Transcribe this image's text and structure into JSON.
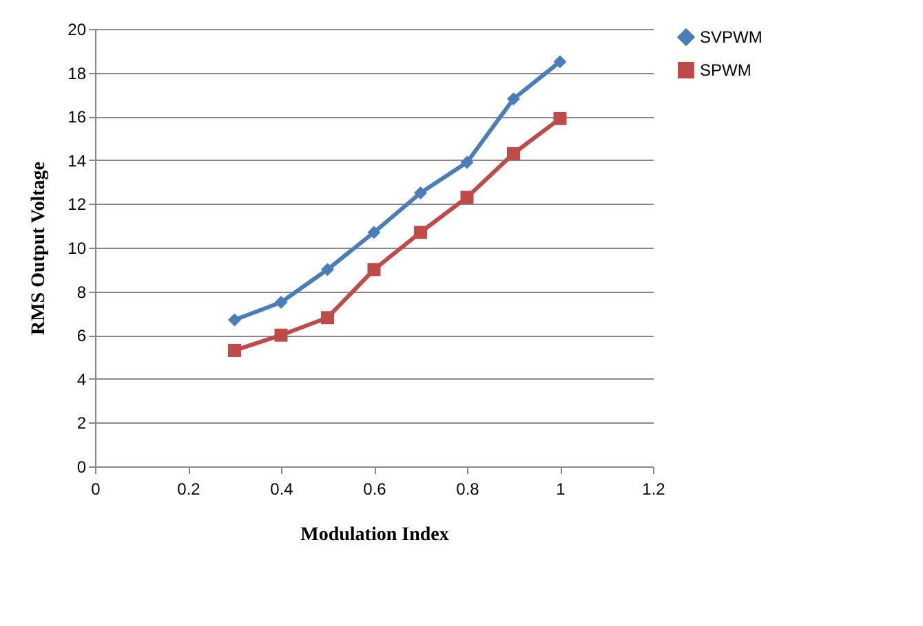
{
  "chart_data": {
    "type": "line",
    "xlabel": "Modulation Index",
    "ylabel": "RMS Output  Voltage",
    "x": [
      0.3,
      0.4,
      0.5,
      0.6,
      0.7,
      0.8,
      0.9,
      1.0
    ],
    "series": [
      {
        "name": "SVPWM",
        "color": "#4a7ebb",
        "marker": "diamond",
        "values": [
          6.7,
          7.5,
          9.0,
          10.7,
          12.5,
          13.9,
          16.8,
          18.5
        ]
      },
      {
        "name": "SPWM",
        "color": "#be4b48",
        "marker": "square",
        "values": [
          5.3,
          6.0,
          6.8,
          9.0,
          10.7,
          12.3,
          14.3,
          15.9
        ]
      }
    ],
    "xlim": [
      0,
      1.2
    ],
    "xticks": [
      0,
      0.2,
      0.4,
      0.6,
      0.8,
      1,
      1.2
    ],
    "ylim": [
      0,
      20
    ],
    "yticks": [
      0,
      2,
      4,
      6,
      8,
      10,
      12,
      14,
      16,
      18,
      20
    ],
    "grid": "y",
    "legend": "right",
    "line_style": "solid"
  }
}
